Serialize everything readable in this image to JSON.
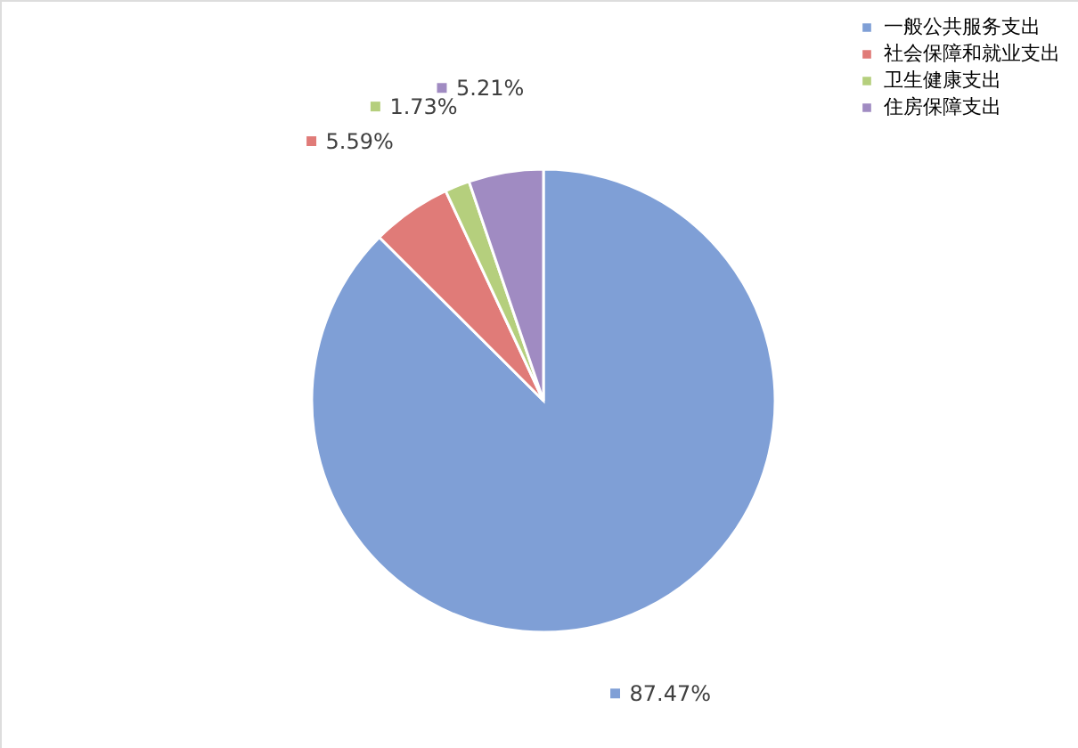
{
  "chart_data": {
    "type": "pie",
    "categories": [
      "一般公共服务支出",
      "社会保障和就业支出",
      "卫生健康支出",
      "住房保障支出"
    ],
    "values": [
      87.47,
      5.59,
      1.73,
      5.21
    ],
    "colors": [
      "#7f9fd6",
      "#e07b78",
      "#b5cf7d",
      "#a08bc2"
    ],
    "value_labels": [
      "87.47%",
      "5.59%",
      "1.73%",
      "5.21%"
    ],
    "legend": "top right"
  }
}
